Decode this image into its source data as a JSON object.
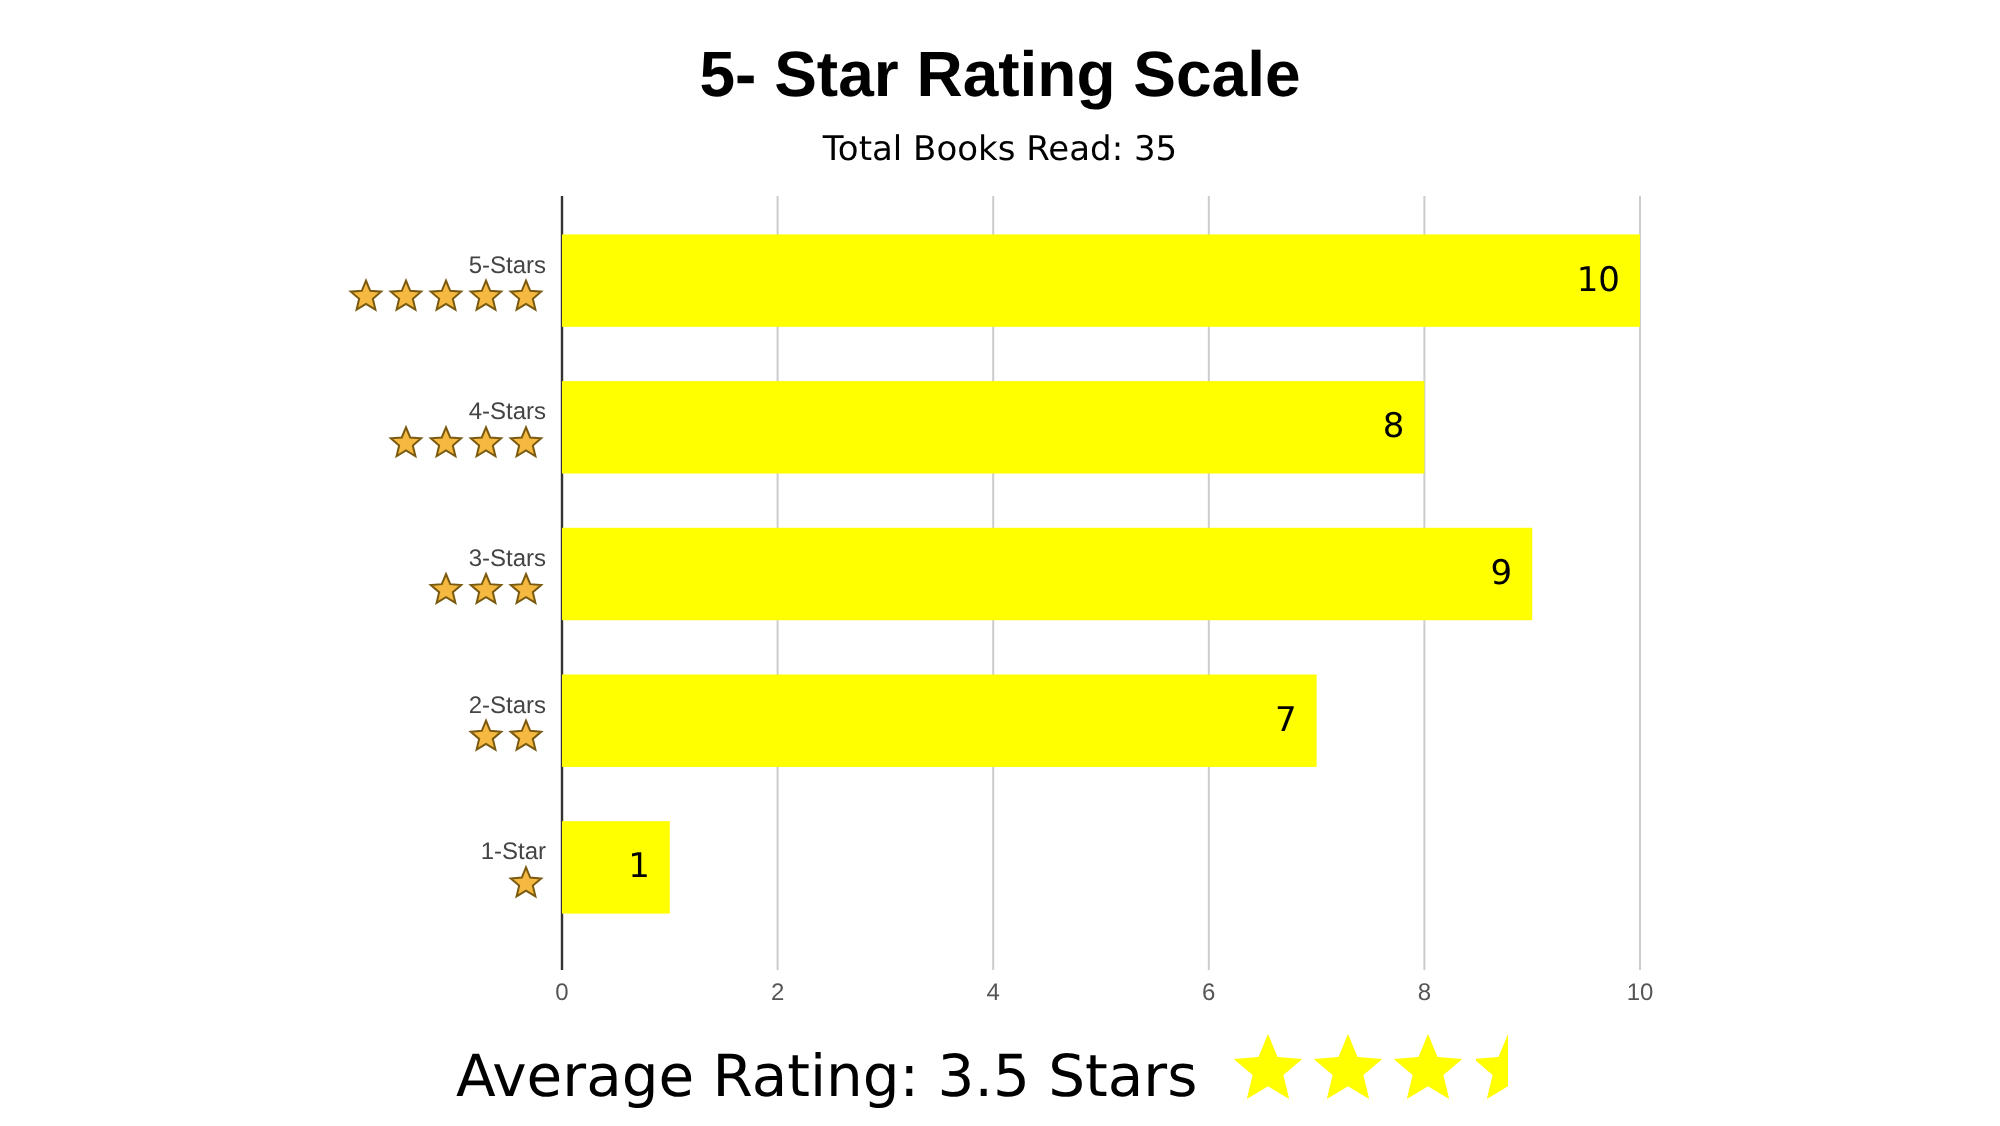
{
  "chart_data": {
    "type": "bar",
    "orientation": "horizontal",
    "title": "5- Star Rating Scale",
    "subtitle": "Total Books Read: 35",
    "categories": [
      "5-Stars",
      "4-Stars",
      "3-Stars",
      "2-Stars",
      "1-Star"
    ],
    "values": [
      10,
      8,
      9,
      7,
      1
    ],
    "color": "#ffff00",
    "xlim": [
      0,
      10
    ],
    "xticks": [
      0,
      2,
      4,
      6,
      8,
      10
    ],
    "grid": "x",
    "data_labels": true,
    "annotations": [
      "Average Rating: 3.5 Stars"
    ]
  }
}
